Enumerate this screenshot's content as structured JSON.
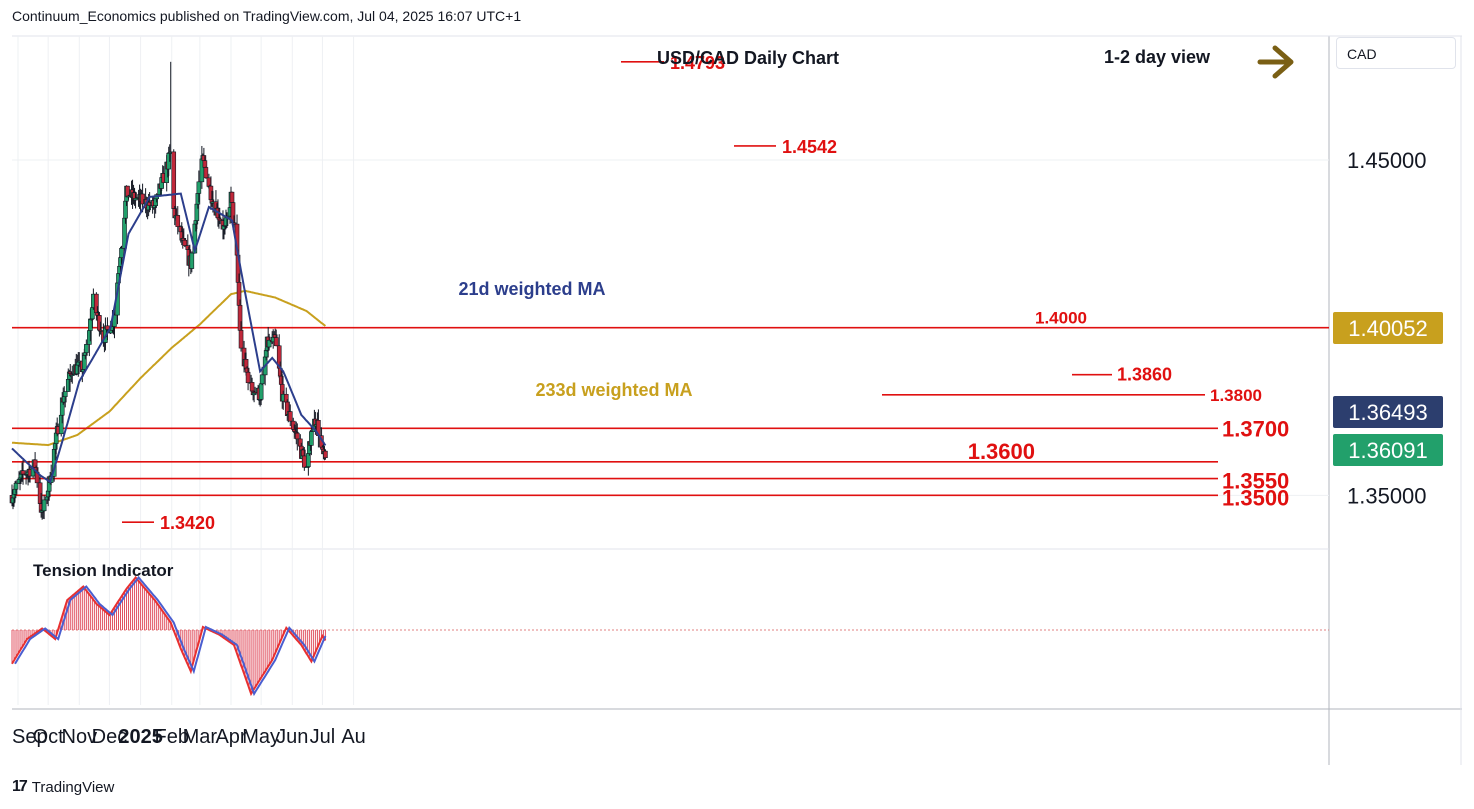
{
  "header": {
    "published": "Continuum_Economics published on TradingView.com, Jul 04, 2025 16:07 UTC+1"
  },
  "chart_title": "USD/CAD Daily Chart",
  "view_label": "1-2 day view",
  "currency": "CAD",
  "footer": {
    "brand": "TradingView",
    "logo_glyph": "17"
  },
  "colors": {
    "up": "#22a06b",
    "down": "#c0283a",
    "ma21": "#2c3e8c",
    "ma233": "#c8a01e",
    "level": "#e01010",
    "arrow": "#7a5f14",
    "grid": "#eef0f3",
    "tag_dark": "#2c3e6e",
    "tag_green": "#22a06b",
    "tag_gold": "#c8a01e"
  },
  "chart_data": {
    "type": "candlestick",
    "title": "USD/CAD Daily Chart",
    "x_ticks": [
      "Sep",
      "Oct",
      "Nov",
      "Dec",
      "2025",
      "Feb",
      "Mar",
      "Apr",
      "May",
      "Jun",
      "Jul",
      "Au"
    ],
    "y_ticks": [
      "1.45000",
      "1.35000"
    ],
    "ylim": [
      1.334,
      1.487
    ],
    "price_tags": [
      {
        "value": "1.40052",
        "style": "gold"
      },
      {
        "value": "1.36493",
        "style": "dark"
      },
      {
        "value": "1.36091",
        "style": "green"
      }
    ],
    "levels": [
      {
        "price": 1.4,
        "label": "1.4000"
      },
      {
        "price": 1.38,
        "label": "1.3800"
      },
      {
        "price": 1.37,
        "label": "1.3700"
      },
      {
        "price": 1.36,
        "label": "1.3600"
      },
      {
        "price": 1.355,
        "label": "1.3550"
      },
      {
        "price": 1.35,
        "label": "1.3500"
      }
    ],
    "annotations": [
      {
        "label": "1.4793",
        "price": 1.4793
      },
      {
        "label": "1.4542",
        "price": 1.4542
      },
      {
        "label": "1.3860",
        "price": 1.386
      },
      {
        "label": "1.3420",
        "price": 1.342
      }
    ],
    "series": [
      {
        "name": "21d weighted MA"
      },
      {
        "name": "233d weighted MA"
      }
    ],
    "anchors": [
      [
        "2024-08-26",
        1.35
      ],
      [
        "2024-09-06",
        1.356
      ],
      [
        "2024-09-18",
        1.359
      ],
      [
        "2024-09-25",
        1.344
      ],
      [
        "2024-10-01",
        1.352
      ],
      [
        "2024-10-08",
        1.365
      ],
      [
        "2024-10-15",
        1.378
      ],
      [
        "2024-10-25",
        1.388
      ],
      [
        "2024-11-05",
        1.388
      ],
      [
        "2024-11-15",
        1.408
      ],
      [
        "2024-11-25",
        1.397
      ],
      [
        "2024-12-05",
        1.402
      ],
      [
        "2024-12-18",
        1.44
      ],
      [
        "2024-12-31",
        1.438
      ],
      [
        "2025-01-15",
        1.436
      ],
      [
        "2025-01-31",
        1.452
      ],
      [
        "2025-02-03",
        1.435
      ],
      [
        "2025-02-12",
        1.425
      ],
      [
        "2025-02-20",
        1.419
      ],
      [
        "2025-02-28",
        1.443
      ],
      [
        "2025-03-04",
        1.45
      ],
      [
        "2025-03-14",
        1.438
      ],
      [
        "2025-03-26",
        1.429
      ],
      [
        "2025-04-01",
        1.439
      ],
      [
        "2025-04-07",
        1.42
      ],
      [
        "2025-04-11",
        1.393
      ],
      [
        "2025-04-21",
        1.382
      ],
      [
        "2025-04-30",
        1.38
      ],
      [
        "2025-05-07",
        1.395
      ],
      [
        "2025-05-15",
        1.396
      ],
      [
        "2025-05-23",
        1.378
      ],
      [
        "2025-05-30",
        1.373
      ],
      [
        "2025-06-05",
        1.368
      ],
      [
        "2025-06-13",
        1.36
      ],
      [
        "2025-06-16",
        1.358
      ],
      [
        "2025-06-20",
        1.37
      ],
      [
        "2025-06-25",
        1.373
      ],
      [
        "2025-07-01",
        1.362
      ],
      [
        "2025-07-04",
        1.3605
      ]
    ],
    "ma21_anchors": [
      [
        "2024-08-26",
        1.364
      ],
      [
        "2024-09-23",
        1.356
      ],
      [
        "2024-10-03",
        1.354
      ],
      [
        "2024-10-15",
        1.366
      ],
      [
        "2024-11-01",
        1.384
      ],
      [
        "2024-12-02",
        1.4
      ],
      [
        "2024-12-20",
        1.428
      ],
      [
        "2025-01-10",
        1.439
      ],
      [
        "2025-02-10",
        1.44
      ],
      [
        "2025-02-24",
        1.423
      ],
      [
        "2025-03-10",
        1.436
      ],
      [
        "2025-04-02",
        1.432
      ],
      [
        "2025-04-14",
        1.412
      ],
      [
        "2025-04-30",
        1.387
      ],
      [
        "2025-05-12",
        1.391
      ],
      [
        "2025-05-23",
        1.387
      ],
      [
        "2025-06-10",
        1.374
      ],
      [
        "2025-06-25",
        1.369
      ],
      [
        "2025-07-04",
        1.3649
      ]
    ],
    "ma233_anchors": [
      [
        "2024-08-26",
        1.3657
      ],
      [
        "2024-10-01",
        1.365
      ],
      [
        "2024-10-30",
        1.368
      ],
      [
        "2024-12-01",
        1.375
      ],
      [
        "2025-01-01",
        1.385
      ],
      [
        "2025-02-01",
        1.394
      ],
      [
        "2025-03-01",
        1.401
      ],
      [
        "2025-04-01",
        1.41
      ],
      [
        "2025-04-15",
        1.411
      ],
      [
        "2025-05-15",
        1.409
      ],
      [
        "2025-06-15",
        1.405
      ],
      [
        "2025-07-04",
        1.4005
      ]
    ],
    "tension_indicator": {
      "label": "Tension Indicator",
      "ylim": [
        -1,
        1
      ],
      "anchors": [
        [
          "2024-08-26",
          -0.45
        ],
        [
          "2024-09-10",
          -0.12
        ],
        [
          "2024-09-25",
          0.02
        ],
        [
          "2024-10-08",
          -0.12
        ],
        [
          "2024-10-20",
          0.4
        ],
        [
          "2024-11-05",
          0.58
        ],
        [
          "2024-11-18",
          0.35
        ],
        [
          "2024-12-01",
          0.2
        ],
        [
          "2024-12-18",
          0.55
        ],
        [
          "2024-12-27",
          0.7
        ],
        [
          "2025-01-15",
          0.4
        ],
        [
          "2025-01-31",
          0.1
        ],
        [
          "2025-02-10",
          -0.25
        ],
        [
          "2025-02-20",
          -0.55
        ],
        [
          "2025-03-04",
          0.04
        ],
        [
          "2025-03-20",
          -0.06
        ],
        [
          "2025-04-04",
          -0.2
        ],
        [
          "2025-04-21",
          -0.85
        ],
        [
          "2025-05-12",
          -0.4
        ],
        [
          "2025-05-26",
          0.03
        ],
        [
          "2025-06-10",
          -0.2
        ],
        [
          "2025-06-20",
          -0.42
        ],
        [
          "2025-07-01",
          -0.08
        ],
        [
          "2025-07-04",
          -0.14
        ]
      ]
    }
  }
}
